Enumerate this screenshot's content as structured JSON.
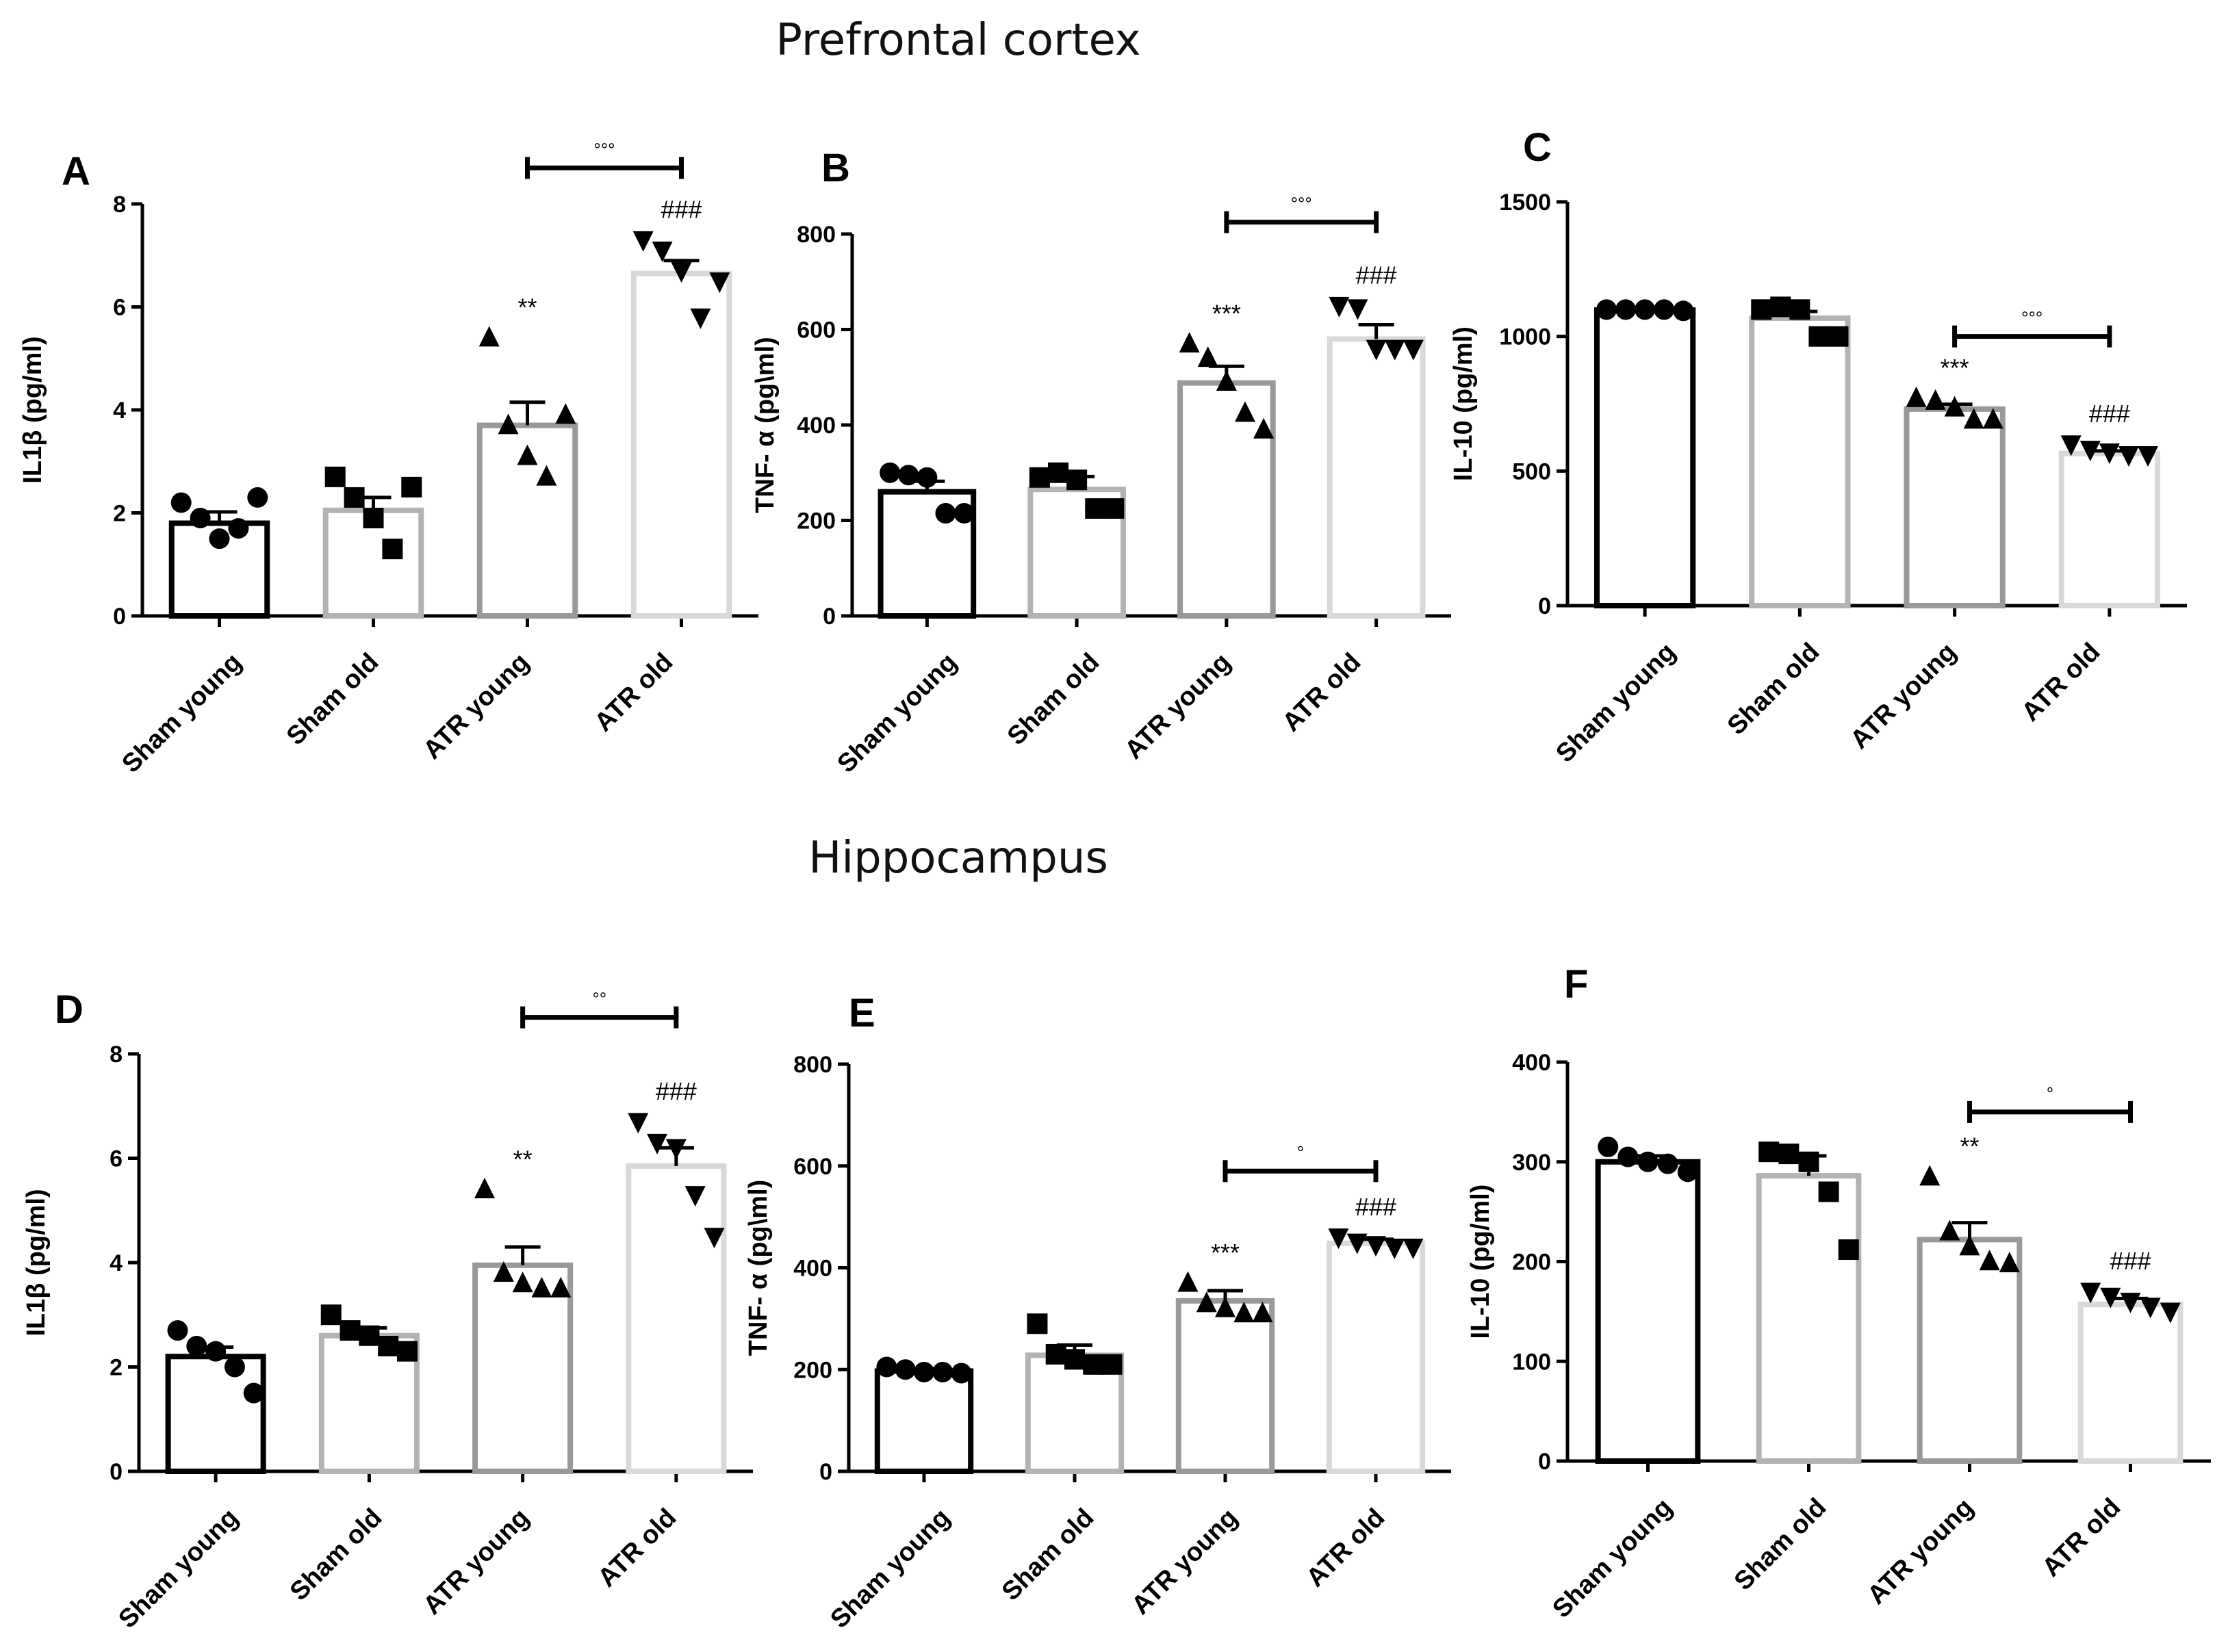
{
  "section_titles": {
    "top": "Prefrontal cortex",
    "bottom": "Hippocampus"
  },
  "group_colors": {
    "Sham young": "#000000",
    "Sham old": "#b3b3b3",
    "ATR young": "#999999",
    "ATR old": "#d9d9d9"
  },
  "chart_data": [
    {
      "panel": "A",
      "type": "bar",
      "region": "Prefrontal cortex",
      "ylabel": "IL1β (pg/ml)",
      "ylim": [
        0,
        8
      ],
      "yticks": [
        0,
        2,
        4,
        6,
        8
      ],
      "categories": [
        "Sham young",
        "Sham old",
        "ATR young",
        "ATR old"
      ],
      "values": [
        1.8,
        2.05,
        3.7,
        6.65
      ],
      "sem": [
        0.22,
        0.25,
        0.45,
        0.25
      ],
      "points": [
        [
          2.2,
          1.9,
          1.5,
          1.7,
          2.3
        ],
        [
          2.7,
          2.3,
          1.9,
          1.3,
          2.5
        ],
        [
          5.4,
          3.7,
          3.1,
          2.7,
          3.9
        ],
        [
          7.3,
          7.1,
          6.7,
          5.8,
          6.5
        ]
      ],
      "markers": [
        "circle",
        "square",
        "triangle-up",
        "triangle-down"
      ],
      "stars": [
        "",
        "",
        "**",
        "###"
      ],
      "bracket": {
        "from": "ATR young",
        "to": "ATR old",
        "y": 8.7,
        "label": "°°°"
      }
    },
    {
      "panel": "B",
      "type": "bar",
      "region": "Prefrontal cortex",
      "ylabel": "TNF- α (pg\\ml)",
      "ylim": [
        0,
        800
      ],
      "yticks": [
        0,
        200,
        400,
        600,
        800
      ],
      "categories": [
        "Sham young",
        "Sham old",
        "ATR young",
        "ATR old"
      ],
      "values": [
        260,
        265,
        488,
        580
      ],
      "sem": [
        22,
        27,
        35,
        30
      ],
      "points": [
        [
          300,
          295,
          290,
          215,
          215
        ],
        [
          290,
          300,
          285,
          225,
          225
        ],
        [
          570,
          540,
          490,
          425,
          390
        ],
        [
          650,
          645,
          560,
          560,
          560
        ]
      ],
      "markers": [
        "circle",
        "square",
        "triangle-up",
        "triangle-down"
      ],
      "stars": [
        "",
        "",
        "***",
        "###"
      ],
      "bracket": {
        "from": "ATR young",
        "to": "ATR old",
        "y": 825,
        "label": "°°°"
      }
    },
    {
      "panel": "C",
      "type": "bar",
      "region": "Prefrontal cortex",
      "ylabel": "IL-10 (pg/ml)",
      "ylim": [
        0,
        1500
      ],
      "yticks": [
        0,
        500,
        1000,
        1500
      ],
      "categories": [
        "Sham young",
        "Sham old",
        "ATR young",
        "ATR old"
      ],
      "values": [
        1098,
        1068,
        730,
        565
      ],
      "sem": [
        6,
        25,
        18,
        10
      ],
      "points": [
        [
          1100,
          1100,
          1100,
          1100,
          1095
        ],
        [
          1100,
          1110,
          1100,
          1000,
          1000
        ],
        [
          770,
          760,
          735,
          690,
          690
        ],
        [
          600,
          580,
          570,
          560,
          560
        ]
      ],
      "markers": [
        "circle",
        "square",
        "triangle-up",
        "triangle-down"
      ],
      "stars": [
        "",
        "",
        "***",
        "###"
      ],
      "bracket": {
        "from": "ATR young",
        "to": "ATR old",
        "y": 1000,
        "label": "°°°"
      }
    },
    {
      "panel": "D",
      "type": "bar",
      "region": "Hippocampus",
      "ylabel": "IL1β (pg/ml)",
      "ylim": [
        0,
        8
      ],
      "yticks": [
        0,
        2,
        4,
        6,
        8
      ],
      "categories": [
        "Sham young",
        "Sham old",
        "ATR young",
        "ATR old"
      ],
      "values": [
        2.2,
        2.6,
        3.95,
        5.85
      ],
      "sem": [
        0.18,
        0.15,
        0.35,
        0.35
      ],
      "points": [
        [
          2.7,
          2.4,
          2.3,
          2.0,
          1.5
        ],
        [
          3.0,
          2.7,
          2.6,
          2.4,
          2.3
        ],
        [
          5.4,
          3.8,
          3.6,
          3.5,
          3.5
        ],
        [
          6.7,
          6.3,
          6.2,
          5.3,
          4.5
        ]
      ],
      "markers": [
        "circle",
        "square",
        "triangle-up",
        "triangle-down"
      ],
      "stars": [
        "",
        "",
        "**",
        "###"
      ],
      "bracket": {
        "from": "ATR young",
        "to": "ATR old",
        "y": 8.7,
        "label": "°°"
      }
    },
    {
      "panel": "E",
      "type": "bar",
      "region": "Hippocampus",
      "ylabel": "TNF- α (pg\\ml)",
      "ylim": [
        0,
        800
      ],
      "yticks": [
        0,
        200,
        400,
        600,
        800
      ],
      "categories": [
        "Sham young",
        "Sham old",
        "ATR young",
        "ATR old"
      ],
      "values": [
        197,
        228,
        335,
        448
      ],
      "sem": [
        5,
        20,
        20,
        8
      ],
      "points": [
        [
          205,
          200,
          195,
          195,
          193
        ],
        [
          290,
          230,
          220,
          210,
          210
        ],
        [
          370,
          330,
          320,
          310,
          310
        ],
        [
          460,
          450,
          445,
          440,
          440
        ]
      ],
      "markers": [
        "circle",
        "square",
        "triangle-up",
        "triangle-down"
      ],
      "stars": [
        "",
        "",
        "***",
        "###"
      ],
      "bracket": {
        "from": "ATR young",
        "to": "ATR old",
        "y": 590,
        "label": "°"
      }
    },
    {
      "panel": "F",
      "type": "bar",
      "region": "Hippocampus",
      "ylabel": "IL-10 (pg/ml)",
      "ylim": [
        0,
        400
      ],
      "yticks": [
        0,
        100,
        200,
        300,
        400
      ],
      "categories": [
        "Sham young",
        "Sham old",
        "ATR young",
        "ATR old"
      ],
      "values": [
        300,
        286,
        222,
        157
      ],
      "sem": [
        6,
        20,
        17,
        6
      ],
      "points": [
        [
          315,
          305,
          300,
          298,
          290
        ],
        [
          310,
          308,
          300,
          270,
          212
        ],
        [
          285,
          230,
          215,
          200,
          198
        ],
        [
          170,
          165,
          160,
          155,
          150
        ]
      ],
      "markers": [
        "circle",
        "square",
        "triangle-up",
        "triangle-down"
      ],
      "stars": [
        "",
        "",
        "**",
        "###"
      ],
      "bracket": {
        "from": "ATR young",
        "to": "ATR old",
        "y": 350,
        "label": "°"
      }
    }
  ]
}
